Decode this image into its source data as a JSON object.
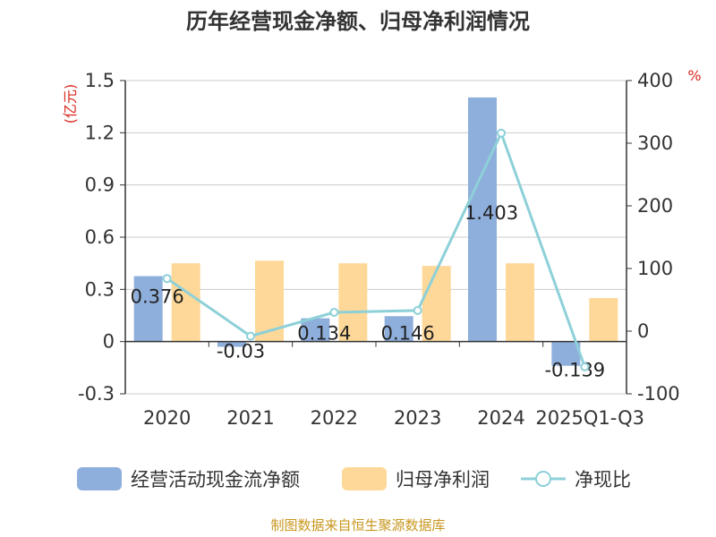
{
  "chart_data": {
    "type": "bar+line",
    "title": "历年经营现金净额、归母净利润情况",
    "categories": [
      "2020",
      "2021",
      "2022",
      "2023",
      "2024",
      "2025Q1-Q3"
    ],
    "left_axis": {
      "unit": "(亿元)",
      "ylim": [
        -0.3,
        1.5
      ],
      "ticks": [
        "1.5",
        "1.2",
        "0.9",
        "0.6",
        "0.3",
        "0",
        "-0.3"
      ]
    },
    "right_axis": {
      "unit": "%",
      "ylim": [
        -100,
        400
      ],
      "ticks": [
        "400",
        "300",
        "200",
        "100",
        "0",
        "-100"
      ]
    },
    "series": [
      {
        "name": "经营活动现金流净额",
        "type": "bar",
        "axis": "left",
        "color": "#8eaedc",
        "values": [
          0.376,
          -0.03,
          0.134,
          0.146,
          1.403,
          -0.139
        ],
        "labels": [
          "0.376",
          "-0.03",
          "0.134",
          "0.146",
          "1.403",
          "-0.139"
        ]
      },
      {
        "name": "归母净利润",
        "type": "bar",
        "axis": "left",
        "color": "#fed898",
        "values": [
          0.45,
          0.465,
          0.45,
          0.435,
          0.45,
          0.25
        ]
      },
      {
        "name": "净现比",
        "type": "line",
        "axis": "right",
        "color": "#8dd0d8",
        "values": [
          84,
          -8,
          30,
          33,
          316,
          -57
        ]
      }
    ]
  },
  "legend": [
    {
      "name": "经营活动现金流净额",
      "marker": "bar",
      "color": "#8eaedc"
    },
    {
      "name": "归母净利润",
      "marker": "bar",
      "color": "#fed898"
    },
    {
      "name": "净现比",
      "marker": "line",
      "color": "#8dd0d8"
    }
  ],
  "source_text": "制图数据来自恒生聚源数据库"
}
